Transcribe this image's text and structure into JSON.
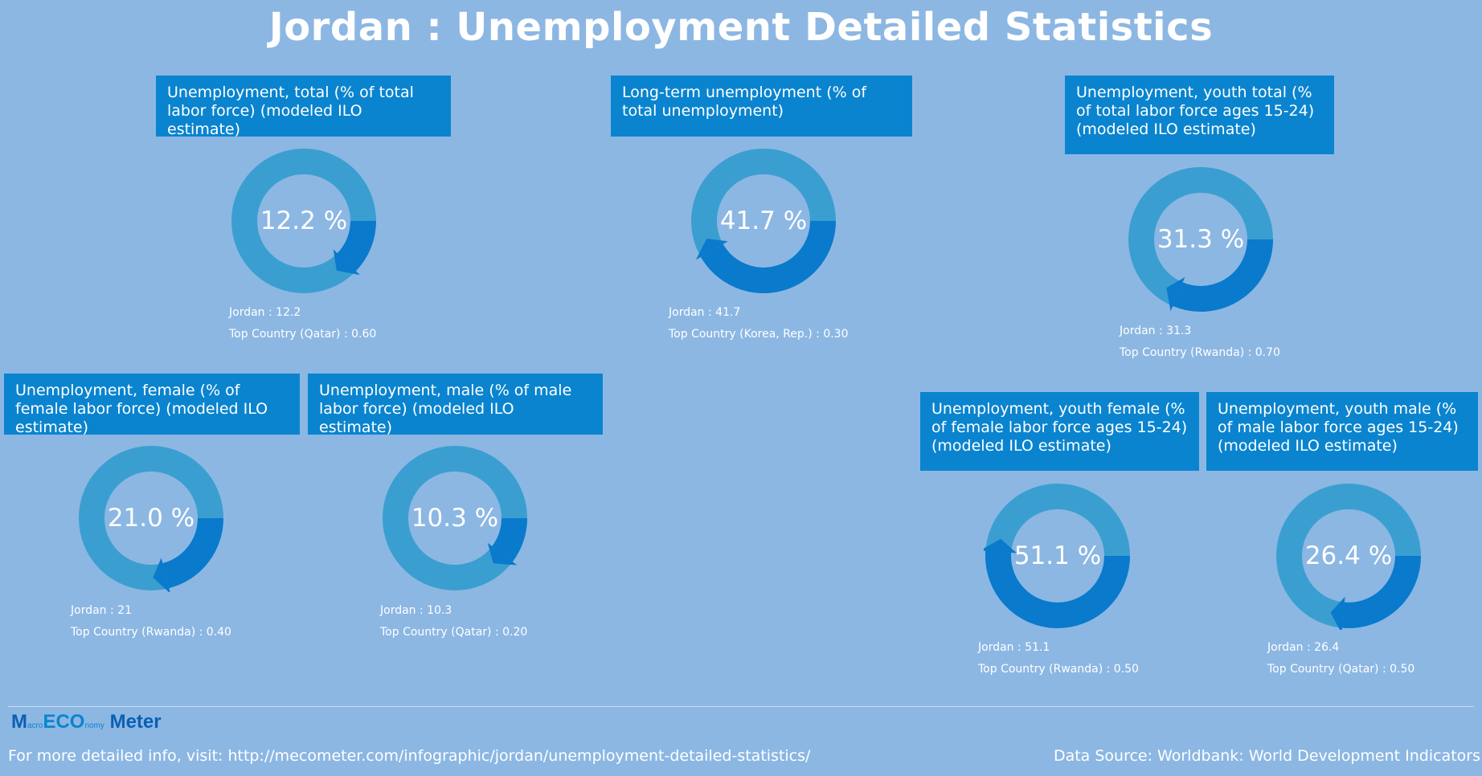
{
  "page": {
    "title": "Jordan : Unemployment Detailed Statistics"
  },
  "colors": {
    "background": "#8cb7e3",
    "header": "#0a84cf",
    "ring_track": "#3a9fd0",
    "ring_value": "#0a7acc"
  },
  "chart_data": [
    {
      "type": "pie",
      "title": "Unemployment, total (% of total labor force) (modeled ILO estimate)",
      "value": 12.2,
      "value_label": "12.2 %",
      "caption_value": "Jordan : 12.2",
      "caption_top": "Top Country (Qatar) : 0.60"
    },
    {
      "type": "pie",
      "title": "Long-term unemployment (% of total unemployment)",
      "value": 41.7,
      "value_label": "41.7 %",
      "caption_value": "Jordan : 41.7",
      "caption_top": "Top Country (Korea, Rep.) : 0.30"
    },
    {
      "type": "pie",
      "title": "Unemployment, youth total (% of total labor force ages 15-24) (modeled ILO estimate)",
      "value": 31.3,
      "value_label": "31.3 %",
      "caption_value": "Jordan : 31.3",
      "caption_top": "Top Country (Rwanda) : 0.70"
    },
    {
      "type": "pie",
      "title": "Unemployment, female (% of female labor force) (modeled ILO estimate)",
      "value": 21.0,
      "value_label": "21.0 %",
      "caption_value": "Jordan : 21",
      "caption_top": "Top Country (Rwanda) : 0.40"
    },
    {
      "type": "pie",
      "title": "Unemployment, male (% of male labor force) (modeled ILO estimate)",
      "value": 10.3,
      "value_label": "10.3 %",
      "caption_value": "Jordan : 10.3",
      "caption_top": "Top Country (Qatar) : 0.20"
    },
    {
      "type": "pie",
      "title": "Unemployment, youth female (% of female labor force ages 15-24) (modeled ILO estimate)",
      "value": 51.1,
      "value_label": "51.1 %",
      "caption_value": "Jordan : 51.1",
      "caption_top": "Top Country (Rwanda) : 0.50"
    },
    {
      "type": "pie",
      "title": "Unemployment, youth male (% of male labor force ages 15-24) (modeled ILO estimate)",
      "value": 26.4,
      "value_label": "26.4 %",
      "caption_value": "Jordan : 26.4",
      "caption_top": "Top Country (Qatar) : 0.50"
    }
  ],
  "footer": {
    "logo_m": "M",
    "logo_acro": "acro",
    "logo_eco": "ECO",
    "logo_nomy": "nomy",
    "logo_meter": " Meter",
    "info": "For more detailed info, visit: http://mecometer.com/infographic/jordan/unemployment-detailed-statistics/",
    "source": "Data Source: Worldbank: World Development Indicators"
  }
}
